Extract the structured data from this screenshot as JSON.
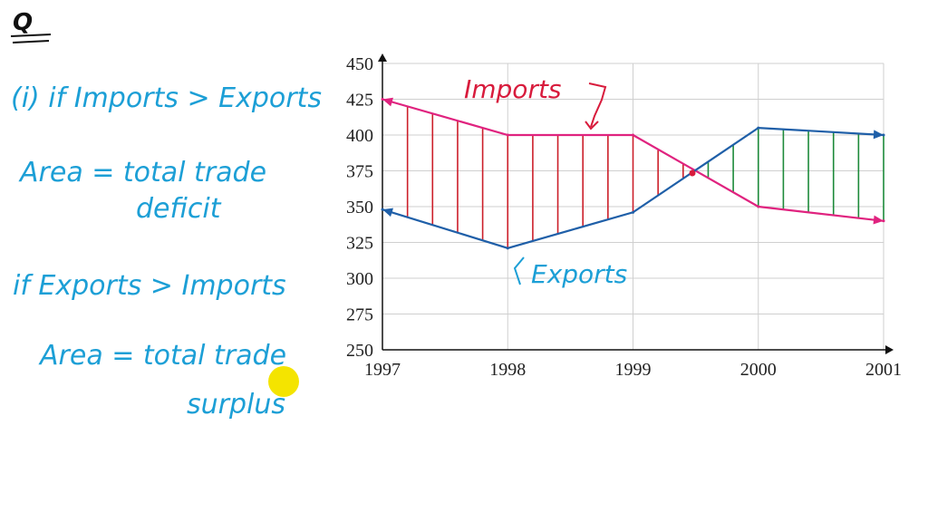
{
  "notes": {
    "q_mark": "Q",
    "line1": "(i) if Imports > Exports",
    "line2": "Area = total trade",
    "line3": "deficit",
    "line4": "if Exports > Imports",
    "line5": "Area = total trade",
    "line6": "surplus"
  },
  "colors": {
    "imports": "#e0237f",
    "exports": "#1f5fa8",
    "deficit_fill": "#cc1f2a",
    "surplus_fill": "#1d8a3a",
    "annotation_blue": "#1c9fd6",
    "annotation_red": "#d81b3c",
    "highlight": "#f4e400"
  },
  "chart_data": {
    "type": "line",
    "title": "",
    "xlabel": "",
    "ylabel": "",
    "x_ticks": [
      "1997",
      "1998",
      "1999",
      "2000",
      "2001"
    ],
    "y_ticks": [
      "250",
      "275",
      "300",
      "325",
      "350",
      "375",
      "400",
      "425",
      "450"
    ],
    "xlim": [
      1997,
      2001
    ],
    "ylim": [
      250,
      450
    ],
    "grid": true,
    "series": [
      {
        "name": "Imports",
        "x": [
          1997,
          1998,
          1999,
          2000,
          2001
        ],
        "y": [
          425,
          400,
          400,
          350,
          340
        ]
      },
      {
        "name": "Exports",
        "x": [
          1997,
          1998,
          1999,
          2000,
          2001
        ],
        "y": [
          348,
          321,
          346,
          405,
          400
        ]
      }
    ],
    "annotations": {
      "imports_label": "Imports",
      "exports_label": "Exports"
    }
  }
}
